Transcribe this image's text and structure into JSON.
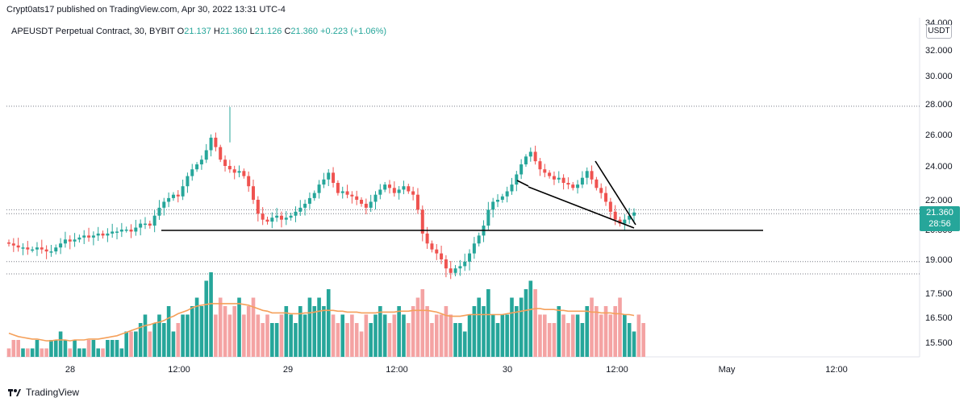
{
  "header": {
    "published": "Crypt0ats17 published on TradingView.com, Apr 30, 2022 13:31 UTC-4"
  },
  "legend": {
    "symbol": "APEUSDT Perpetual Contract, 30, BYBIT",
    "open_label": "O",
    "open": "21.137",
    "high_label": "H",
    "high": "21.360",
    "low_label": "L",
    "low": "21.126",
    "close_label": "C",
    "close": "21.360",
    "change": "+0.223 (+1.06%)"
  },
  "currency_badge": "USDT",
  "price_tag": {
    "price": "21.360",
    "countdown": "28:56"
  },
  "footer": {
    "brand": "TradingView"
  },
  "colors": {
    "up": "#26a69a",
    "down": "#ef5350",
    "vol_up": "#26a69a",
    "vol_down": "#f4a3a3",
    "ma": "#f5a05a",
    "line": "#000000"
  },
  "chart_data": {
    "type": "candlestick",
    "price_axis": {
      "ticks": [
        {
          "value": 34.0,
          "label": "34.000"
        },
        {
          "value": 32.0,
          "label": "32.000"
        },
        {
          "value": 30.0,
          "label": "30.000"
        },
        {
          "value": 28.0,
          "label": "28.000"
        },
        {
          "value": 26.0,
          "label": "26.000"
        },
        {
          "value": 24.0,
          "label": "24.000"
        },
        {
          "value": 22.0,
          "label": "22.000"
        },
        {
          "value": 20.5,
          "label": "20.500"
        },
        {
          "value": 19.0,
          "label": "19.000"
        },
        {
          "value": 17.5,
          "label": "17.500"
        },
        {
          "value": 16.5,
          "label": "16.500"
        },
        {
          "value": 15.5,
          "label": "15.500"
        }
      ]
    },
    "time_axis": {
      "labels": [
        "28",
        "12:00",
        "29",
        "12:00",
        "30",
        "12:00",
        "May",
        "12:00"
      ]
    },
    "dotted_levels": [
      27.85,
      21.5,
      21.3,
      18.9
    ],
    "close_series": [
      19.8,
      19.7,
      19.6,
      19.6,
      19.5,
      19.5,
      19.6,
      19.5,
      19.4,
      19.4,
      19.6,
      19.8,
      20.0,
      19.9,
      20.0,
      20.1,
      20.2,
      20.1,
      20.2,
      20.3,
      20.2,
      20.3,
      20.4,
      20.4,
      20.5,
      20.5,
      20.4,
      20.6,
      20.8,
      20.8,
      20.7,
      21.2,
      21.6,
      21.9,
      22.1,
      22.3,
      22.2,
      22.8,
      23.4,
      23.8,
      24.1,
      24.4,
      25.0,
      25.8,
      25.2,
      24.4,
      24.0,
      23.8,
      23.6,
      23.7,
      23.4,
      22.8,
      22.0,
      21.3,
      21.0,
      20.9,
      21.1,
      21.2,
      21.0,
      21.1,
      21.2,
      21.4,
      21.6,
      21.8,
      22.1,
      22.4,
      22.9,
      23.2,
      23.6,
      23.0,
      22.4,
      22.5,
      22.3,
      22.2,
      22.0,
      21.8,
      21.6,
      21.9,
      22.3,
      22.6,
      22.9,
      22.7,
      22.4,
      22.6,
      22.8,
      22.5,
      22.3,
      21.5,
      20.3,
      19.8,
      19.5,
      19.3,
      19.0,
      18.6,
      18.4,
      18.6,
      18.7,
      18.9,
      19.3,
      19.8,
      20.2,
      20.7,
      21.5,
      21.9,
      22.0,
      22.2,
      22.5,
      22.9,
      23.5,
      24.1,
      24.6,
      24.9,
      24.3,
      23.8,
      23.6,
      23.4,
      23.2,
      23.3,
      23.0,
      22.9,
      22.7,
      22.9,
      23.3,
      23.7,
      23.2,
      22.7,
      22.4,
      21.9,
      21.4,
      21.0,
      20.8,
      21.0,
      21.2,
      21.36
    ],
    "volume_series": [
      1,
      2,
      2,
      1,
      1,
      1,
      2,
      1,
      1,
      2,
      2,
      3,
      2,
      1,
      2,
      1,
      1,
      2,
      2,
      1,
      1,
      2,
      2,
      2,
      1,
      3,
      3,
      3,
      4,
      5,
      3,
      4,
      5,
      4,
      6,
      3,
      4,
      5,
      5,
      6,
      7,
      6,
      9,
      10,
      5,
      7,
      6,
      5,
      6,
      7,
      5,
      6,
      7,
      5,
      4,
      5,
      4,
      4,
      5,
      6,
      5,
      4,
      6,
      5,
      7,
      6,
      7,
      6,
      8,
      5,
      4,
      5,
      4,
      5,
      4,
      3,
      5,
      4,
      5,
      6,
      5,
      4,
      5,
      6,
      5,
      4,
      6,
      7,
      8,
      6,
      4,
      5,
      5,
      6,
      5,
      4,
      4,
      3,
      5,
      6,
      7,
      6,
      8,
      5,
      4,
      5,
      5,
      7,
      6,
      7,
      8,
      9,
      8,
      5,
      5,
      4,
      4,
      6,
      5,
      4,
      5,
      5,
      4,
      6,
      7,
      6,
      5,
      6,
      5,
      6,
      7,
      5,
      4,
      3,
      5,
      4
    ],
    "ma_series": [
      2.8,
      2.6,
      2.4,
      2.3,
      2.2,
      2.1,
      2.1,
      2.0,
      1.9,
      1.9,
      2.0,
      2.0,
      2.0,
      1.9,
      2.0,
      2.0,
      2.0,
      2.1,
      2.1,
      2.1,
      2.2,
      2.3,
      2.4,
      2.5,
      2.7,
      2.9,
      3.1,
      3.3,
      3.5,
      3.7,
      3.8,
      4.0,
      4.1,
      4.3,
      4.6,
      4.8,
      5.1,
      5.3,
      5.5,
      5.8,
      6.0,
      6.1,
      6.2,
      6.3,
      6.3,
      6.3,
      6.3,
      6.3,
      6.3,
      6.3,
      6.2,
      6.1,
      5.9,
      5.7,
      5.5,
      5.4,
      5.2,
      5.2,
      5.2,
      5.2,
      5.1,
      5.1,
      5.1,
      5.2,
      5.2,
      5.3,
      5.4,
      5.5,
      5.5,
      5.5,
      5.4,
      5.4,
      5.3,
      5.3,
      5.3,
      5.2,
      5.2,
      5.2,
      5.2,
      5.3,
      5.3,
      5.3,
      5.3,
      5.4,
      5.4,
      5.4,
      5.5,
      5.5,
      5.5,
      5.5,
      5.4,
      5.3,
      5.1,
      4.9,
      4.8,
      4.8,
      4.8,
      4.9,
      5.0,
      5.0,
      5.0,
      5.0,
      5.0,
      5.0,
      5.0,
      5.0,
      5.1,
      5.2,
      5.3,
      5.4,
      5.5,
      5.6,
      5.7,
      5.7,
      5.6,
      5.6,
      5.6,
      5.5,
      5.5,
      5.4,
      5.4,
      5.4,
      5.4,
      5.4,
      5.3,
      5.3,
      5.2,
      5.2,
      5.2,
      5.1,
      5.1,
      5.0,
      5.0,
      4.9
    ]
  }
}
